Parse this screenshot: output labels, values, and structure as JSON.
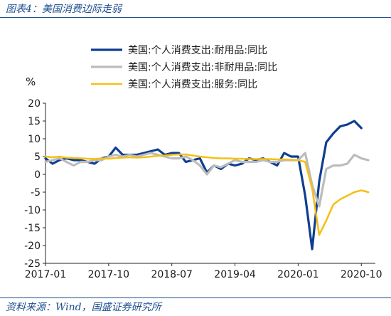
{
  "figure": {
    "title": "图表4：美国消费边际走弱",
    "source": "资料来源：Wind，国盛证券研究所"
  },
  "colors": {
    "durable": "#0d3e91",
    "nondurable": "#bcbcbc",
    "services": "#f5c018",
    "text": "#1a1a1a",
    "axis": "#262626",
    "header": "#1d4e8f"
  },
  "chart_data": {
    "type": "line",
    "ylabel": "%",
    "ylim": [
      -25,
      20
    ],
    "yticks": [
      -25,
      -20,
      -15,
      -10,
      -5,
      0,
      5,
      10,
      15,
      20
    ],
    "xlim": [
      "2017-01",
      "2020-12"
    ],
    "xticks": [
      "2017-01",
      "2017-10",
      "2018-07",
      "2019-04",
      "2020-01",
      "2020-10"
    ],
    "grid": false,
    "legend_position": "top",
    "series": [
      {
        "name": "美国:个人消费支出:耐用品:同比",
        "color_key": "durable",
        "x": [
          "2017-01",
          "2017-02",
          "2017-03",
          "2017-04",
          "2017-05",
          "2017-06",
          "2017-07",
          "2017-08",
          "2017-09",
          "2017-10",
          "2017-11",
          "2017-12",
          "2018-01",
          "2018-02",
          "2018-03",
          "2018-04",
          "2018-05",
          "2018-06",
          "2018-07",
          "2018-08",
          "2018-09",
          "2018-10",
          "2018-11",
          "2018-12",
          "2019-01",
          "2019-02",
          "2019-03",
          "2019-04",
          "2019-05",
          "2019-06",
          "2019-07",
          "2019-08",
          "2019-09",
          "2019-10",
          "2019-11",
          "2019-12",
          "2020-01",
          "2020-02",
          "2020-03",
          "2020-04",
          "2020-05",
          "2020-06",
          "2020-07",
          "2020-08",
          "2020-09",
          "2020-10",
          "2020-11"
        ],
        "values": [
          4.5,
          3.0,
          4.0,
          4.5,
          4.0,
          4.0,
          3.5,
          3.0,
          4.5,
          5.0,
          7.5,
          5.5,
          5.5,
          5.5,
          6.0,
          6.5,
          7.0,
          5.5,
          6.0,
          6.0,
          3.5,
          4.0,
          4.5,
          0.5,
          2.5,
          1.5,
          3.0,
          2.5,
          3.0,
          4.5,
          4.0,
          4.5,
          3.5,
          2.5,
          6.0,
          5.0,
          5.0,
          -6.0,
          -21.0,
          -2.0,
          9.0,
          11.5,
          13.5,
          14.0,
          15.0,
          13.0,
          null
        ]
      },
      {
        "name": "美国:个人消费支出:非耐用品:同比",
        "color_key": "nondurable",
        "x": [
          "2017-01",
          "2017-02",
          "2017-03",
          "2017-04",
          "2017-05",
          "2017-06",
          "2017-07",
          "2017-08",
          "2017-09",
          "2017-10",
          "2017-11",
          "2017-12",
          "2018-01",
          "2018-02",
          "2018-03",
          "2018-04",
          "2018-05",
          "2018-06",
          "2018-07",
          "2018-08",
          "2018-09",
          "2018-10",
          "2018-11",
          "2018-12",
          "2019-01",
          "2019-02",
          "2019-03",
          "2019-04",
          "2019-05",
          "2019-06",
          "2019-07",
          "2019-08",
          "2019-09",
          "2019-10",
          "2019-11",
          "2019-12",
          "2020-01",
          "2020-02",
          "2020-03",
          "2020-04",
          "2020-05",
          "2020-06",
          "2020-07",
          "2020-08",
          "2020-09",
          "2020-10",
          "2020-11"
        ],
        "values": [
          3.5,
          4.0,
          4.5,
          3.5,
          2.5,
          3.5,
          3.5,
          4.0,
          4.0,
          5.0,
          5.5,
          5.0,
          5.5,
          5.0,
          5.5,
          6.0,
          5.5,
          5.0,
          4.5,
          4.5,
          5.0,
          4.0,
          2.5,
          0.0,
          2.5,
          2.0,
          3.0,
          4.0,
          3.5,
          3.5,
          3.5,
          4.0,
          3.5,
          3.5,
          4.0,
          4.0,
          4.0,
          6.0,
          -3.0,
          -9.0,
          1.5,
          2.5,
          2.5,
          3.0,
          5.5,
          4.5,
          4.0
        ]
      },
      {
        "name": "美国:个人消费支出:服务:同比",
        "color_key": "services",
        "x": [
          "2017-01",
          "2017-02",
          "2017-03",
          "2017-04",
          "2017-05",
          "2017-06",
          "2017-07",
          "2017-08",
          "2017-09",
          "2017-10",
          "2017-11",
          "2017-12",
          "2018-01",
          "2018-02",
          "2018-03",
          "2018-04",
          "2018-05",
          "2018-06",
          "2018-07",
          "2018-08",
          "2018-09",
          "2018-10",
          "2018-11",
          "2018-12",
          "2019-01",
          "2019-02",
          "2019-03",
          "2019-04",
          "2019-05",
          "2019-06",
          "2019-07",
          "2019-08",
          "2019-09",
          "2019-10",
          "2019-11",
          "2019-12",
          "2020-01",
          "2020-02",
          "2020-03",
          "2020-04",
          "2020-05",
          "2020-06",
          "2020-07",
          "2020-08",
          "2020-09",
          "2020-10",
          "2020-11"
        ],
        "values": [
          5.0,
          4.8,
          5.0,
          4.7,
          4.6,
          4.5,
          4.4,
          4.3,
          4.5,
          4.4,
          4.6,
          4.7,
          4.8,
          4.7,
          4.8,
          5.0,
          5.2,
          5.3,
          5.5,
          5.6,
          5.6,
          5.3,
          5.0,
          4.8,
          4.6,
          4.5,
          4.5,
          4.4,
          4.4,
          4.3,
          4.3,
          4.3,
          4.3,
          4.2,
          4.2,
          4.1,
          4.0,
          3.5,
          -4.0,
          -17.0,
          -13.0,
          -8.5,
          -7.0,
          -6.0,
          -5.0,
          -4.5,
          -5.0
        ]
      }
    ]
  }
}
